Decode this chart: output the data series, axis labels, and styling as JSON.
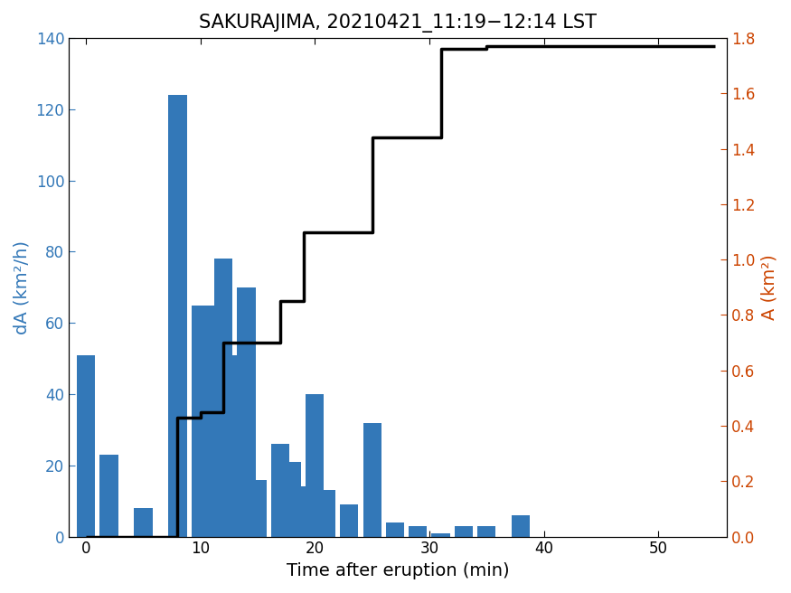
{
  "title": "SAKURAJIMA, 20210421_11:19−12:14 LST",
  "xlabel": "Time after eruption (min)",
  "ylabel_left": "dA (km²/h)",
  "ylabel_right": "A (km²)",
  "bar_centers": [
    0,
    2,
    5,
    8,
    10,
    11,
    12,
    13,
    14,
    15,
    17,
    18,
    19,
    20,
    21,
    23,
    25,
    27,
    29,
    31,
    33,
    35,
    38,
    40,
    43,
    45,
    47,
    53
  ],
  "bar_heights": [
    51,
    23,
    8,
    124,
    65,
    65,
    78,
    51,
    70,
    16,
    26,
    21,
    14,
    40,
    13,
    9,
    32,
    4,
    3,
    1,
    3,
    3,
    6,
    0,
    0,
    0,
    0,
    0
  ],
  "bar_color": "#3378b8",
  "bar_width": 1.6,
  "line_x": [
    0,
    8,
    8,
    10,
    10,
    12,
    12,
    14,
    14,
    17,
    17,
    19,
    19,
    22,
    22,
    25,
    25,
    28,
    28,
    31,
    31,
    35,
    35,
    55
  ],
  "line_y": [
    0,
    0,
    0.43,
    0.43,
    0.45,
    0.45,
    0.7,
    0.7,
    0.7,
    0.7,
    0.85,
    0.85,
    1.1,
    1.1,
    1.1,
    1.1,
    1.44,
    1.44,
    1.44,
    1.44,
    1.76,
    1.76,
    1.77,
    1.77
  ],
  "xlim": [
    -1.5,
    56
  ],
  "ylim_left": [
    0,
    140
  ],
  "ylim_right": [
    0,
    1.8
  ],
  "xticks": [
    0,
    10,
    20,
    30,
    40,
    50
  ],
  "yticks_left": [
    0,
    20,
    40,
    60,
    80,
    100,
    120,
    140
  ],
  "yticks_right": [
    0,
    0.2,
    0.4,
    0.6,
    0.8,
    1.0,
    1.2,
    1.4,
    1.6,
    1.8
  ],
  "line_color": "#000000",
  "line_width": 2.5,
  "left_label_color": "#3378b8",
  "right_label_color": "#cc4400",
  "title_fontsize": 15,
  "label_fontsize": 14,
  "tick_fontsize": 12
}
